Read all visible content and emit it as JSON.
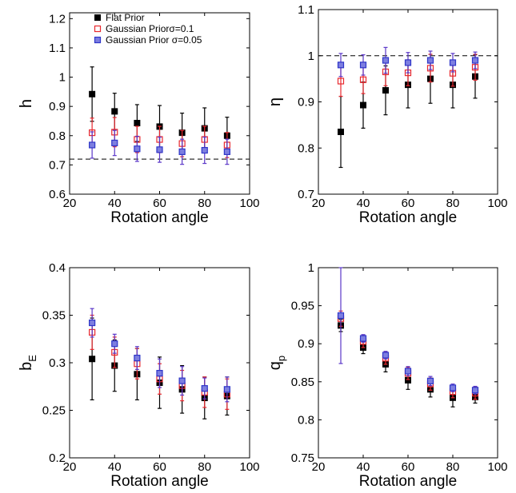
{
  "colors": {
    "flat": "#000000",
    "gauss01": "#e8282e",
    "gauss005_fill": "#7d7ee0",
    "gauss005_edge": "#2e36c8",
    "errbar_gauss005": "#5a36c8"
  },
  "legend": {
    "position": "top-left",
    "entries": [
      "Flat Prior",
      "Gaussian Priorσ=0.1",
      "Gaussian Prior σ=0.05"
    ]
  },
  "chart_data": [
    {
      "type": "scatter",
      "xlabel": "Rotation angle",
      "ylabel": "h",
      "xlim": [
        20,
        100
      ],
      "ylim": [
        0.6,
        1.22
      ],
      "xticks": [
        20,
        40,
        60,
        80,
        100
      ],
      "yticks": [
        0.6,
        0.7,
        0.8,
        0.9,
        1,
        1.1,
        1.2
      ],
      "ytick_labels": [
        "0.6",
        "0.7",
        "0.8",
        "0.9",
        "1",
        "1.1",
        "1.2"
      ],
      "hline": 0.72,
      "x": [
        30,
        40,
        50,
        60,
        70,
        80,
        90
      ],
      "series": [
        {
          "name": "Flat Prior",
          "values": [
            0.942,
            0.883,
            0.843,
            0.831,
            0.81,
            0.825,
            0.8
          ],
          "err": [
            0.093,
            0.062,
            0.063,
            0.072,
            0.067,
            0.07,
            0.063
          ]
        },
        {
          "name": "Gaussian Priorσ=0.1",
          "values": [
            0.81,
            0.812,
            0.787,
            0.787,
            0.773,
            0.787,
            0.768
          ],
          "err": [
            0.05,
            0.05,
            0.045,
            0.045,
            0.045,
            0.045,
            0.043
          ]
        },
        {
          "name": "Gaussian Prior σ=0.05",
          "values": [
            0.768,
            0.775,
            0.755,
            0.752,
            0.745,
            0.75,
            0.745
          ],
          "err": [
            0.045,
            0.043,
            0.043,
            0.043,
            0.043,
            0.045,
            0.043
          ]
        }
      ]
    },
    {
      "type": "scatter",
      "xlabel": "Rotation angle",
      "ylabel": "η",
      "xlim": [
        20,
        100
      ],
      "ylim": [
        0.7,
        1.1
      ],
      "xticks": [
        20,
        40,
        60,
        80,
        100
      ],
      "yticks": [
        0.7,
        0.8,
        0.9,
        1,
        1.1
      ],
      "ytick_labels": [
        "0.7",
        "0.8",
        "0.9",
        "1",
        "1.1"
      ],
      "hline": 1.0,
      "x": [
        30,
        40,
        50,
        60,
        70,
        80,
        90
      ],
      "series": [
        {
          "name": "Flat Prior",
          "values": [
            0.835,
            0.893,
            0.925,
            0.937,
            0.95,
            0.937,
            0.955
          ],
          "err": [
            0.077,
            0.05,
            0.053,
            0.05,
            0.053,
            0.05,
            0.047
          ]
        },
        {
          "name": "Gaussian Priorσ=0.1",
          "values": [
            0.945,
            0.948,
            0.965,
            0.963,
            0.973,
            0.962,
            0.975
          ],
          "err": [
            0.033,
            0.03,
            0.03,
            0.028,
            0.03,
            0.028,
            0.028
          ]
        },
        {
          "name": "Gaussian Prior σ=0.05",
          "values": [
            0.98,
            0.98,
            0.99,
            0.985,
            0.99,
            0.985,
            0.99
          ],
          "err": [
            0.025,
            0.022,
            0.028,
            0.022,
            0.02,
            0.02,
            0.018
          ]
        }
      ]
    },
    {
      "type": "scatter",
      "xlabel": "Rotation angle",
      "ylabel": "b",
      "ylabel_sub": "E",
      "xlim": [
        20,
        100
      ],
      "ylim": [
        0.2,
        0.4
      ],
      "xticks": [
        20,
        40,
        60,
        80,
        100
      ],
      "yticks": [
        0.2,
        0.25,
        0.3,
        0.35,
        0.4
      ],
      "ytick_labels": [
        "0.2",
        "0.25",
        "0.3",
        "0.35",
        "0.4"
      ],
      "x": [
        30,
        40,
        50,
        60,
        70,
        80,
        90
      ],
      "series": [
        {
          "name": "Flat Prior",
          "values": [
            0.304,
            0.297,
            0.288,
            0.279,
            0.272,
            0.263,
            0.265
          ],
          "err": [
            0.043,
            0.027,
            0.027,
            0.027,
            0.025,
            0.022,
            0.02
          ]
        },
        {
          "name": "Gaussian Priorσ=0.1",
          "values": [
            0.332,
            0.311,
            0.299,
            0.283,
            0.276,
            0.269,
            0.267
          ],
          "err": [
            0.018,
            0.016,
            0.016,
            0.016,
            0.016,
            0.016,
            0.016
          ]
        },
        {
          "name": "Gaussian Prior σ=0.05",
          "values": [
            0.342,
            0.32,
            0.305,
            0.289,
            0.281,
            0.273,
            0.272
          ],
          "err": [
            0.015,
            0.01,
            0.012,
            0.015,
            0.015,
            0.011,
            0.013
          ]
        }
      ]
    },
    {
      "type": "scatter",
      "xlabel": "Rotation angle",
      "ylabel": "q",
      "ylabel_sub": "p",
      "xlim": [
        20,
        100
      ],
      "ylim": [
        0.75,
        1.0
      ],
      "xticks": [
        20,
        40,
        60,
        80,
        100
      ],
      "yticks": [
        0.75,
        0.8,
        0.85,
        0.9,
        0.95,
        1
      ],
      "ytick_labels": [
        "0.75",
        "0.8",
        "0.85",
        "0.9",
        "0.95",
        "1"
      ],
      "x": [
        30,
        40,
        50,
        60,
        70,
        80,
        90
      ],
      "series": [
        {
          "name": "Flat Prior",
          "values": [
            0.924,
            0.895,
            0.873,
            0.852,
            0.84,
            0.829,
            0.83
          ],
          "err": [
            0.008,
            0.008,
            0.01,
            0.012,
            0.01,
            0.012,
            0.008
          ]
        },
        {
          "name": "Gaussian Priorσ=0.1",
          "values": [
            0.933,
            0.903,
            0.881,
            0.861,
            0.847,
            0.837,
            0.835
          ],
          "err": [
            0.01,
            0.008,
            0.008,
            0.008,
            0.008,
            0.008,
            0.008
          ]
        },
        {
          "name": "Gaussian Prior σ=0.05",
          "values": [
            0.937,
            0.907,
            0.885,
            0.864,
            0.851,
            0.842,
            0.839
          ],
          "err": [
            0.063,
            0.005,
            0.005,
            0.006,
            0.006,
            0.005,
            0.005
          ]
        }
      ]
    }
  ]
}
